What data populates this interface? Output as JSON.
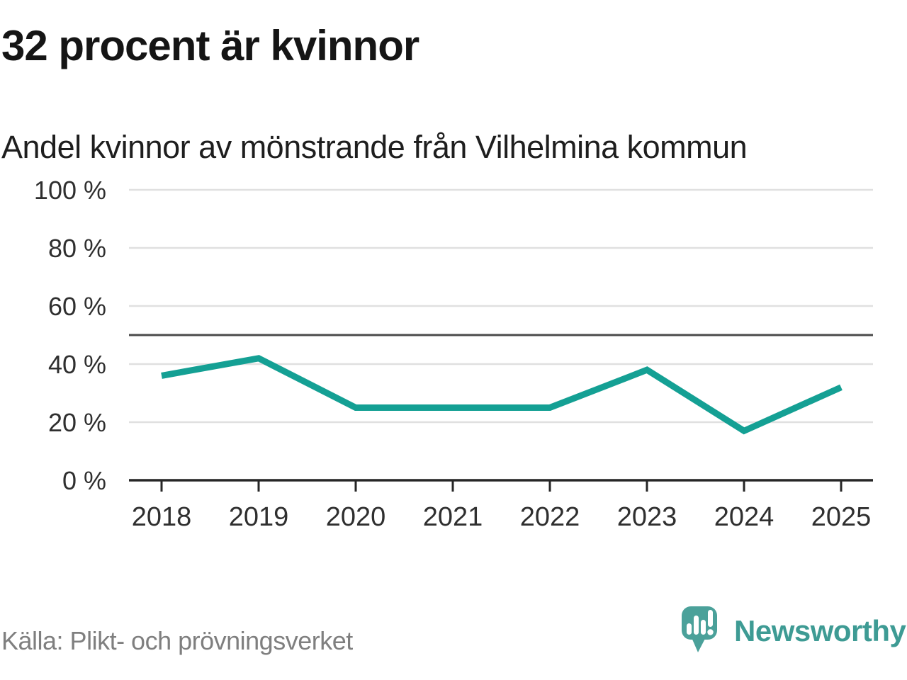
{
  "title": "32 procent är kvinnor",
  "subtitle": "Andel kvinnor av mönstrande från Vilhelmina kommun",
  "source": "Källa: Plikt- och prövningsverket",
  "branding": {
    "name": "Newsworthy",
    "icon": "speech-bubble-bar-chart-exclamation",
    "icon_color": "#4BA19A",
    "wordmark_color": "#3E9B94"
  },
  "chart_data": {
    "type": "line",
    "title": "32 procent är kvinnor",
    "subtitle": "Andel kvinnor av mönstrande från Vilhelmina kommun",
    "x": [
      "2018",
      "2019",
      "2020",
      "2021",
      "2022",
      "2023",
      "2024",
      "2025"
    ],
    "series": [
      {
        "name": "Andel kvinnor av mönstrande",
        "values": [
          36,
          42,
          25,
          25,
          25,
          38,
          17,
          32
        ]
      }
    ],
    "unit": "%",
    "ylim": [
      0,
      100
    ],
    "yticks": [
      {
        "value": 100,
        "label": "100 %"
      },
      {
        "value": 80,
        "label": "80 %"
      },
      {
        "value": 60,
        "label": "60 %"
      },
      {
        "value": 40,
        "label": "40 %"
      },
      {
        "value": 20,
        "label": "20 %"
      },
      {
        "value": 0,
        "label": "0 %"
      }
    ],
    "reference_line": {
      "value": 50
    },
    "grid": true,
    "legend": "none",
    "line_color": "#14A094",
    "gridline_color": "#E0E0E0",
    "reference_line_color": "#4A4A4A",
    "axis_color": "#262626",
    "tick_label_color": "#2F2F2F"
  }
}
